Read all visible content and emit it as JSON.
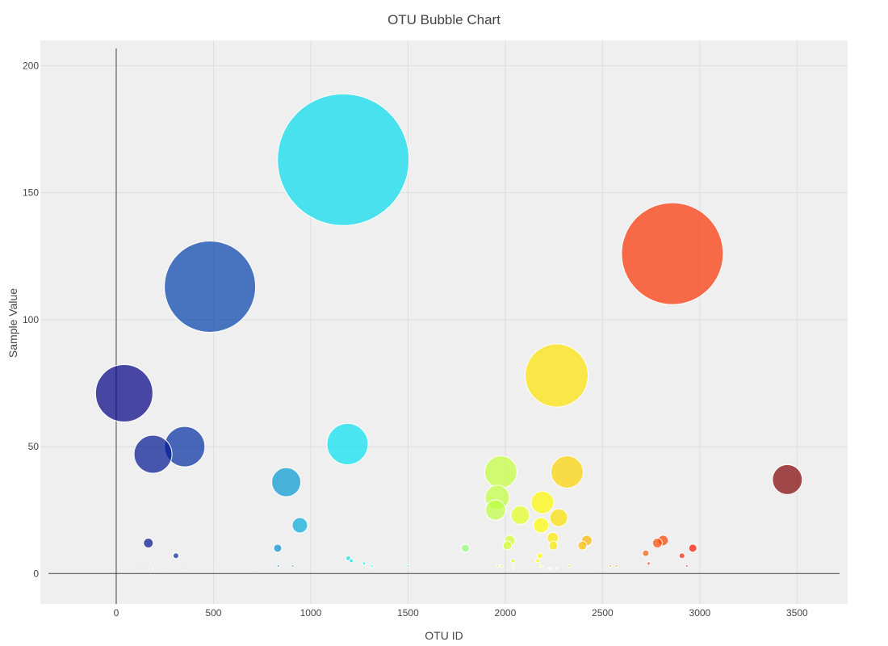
{
  "chart_data": {
    "type": "scatter",
    "subtype": "bubble",
    "title": "OTU Bubble Chart",
    "xlabel": "OTU ID",
    "ylabel": "Sample Value",
    "xlim": [
      -390,
      3760
    ],
    "ylim": [
      -12,
      210
    ],
    "xticks": [
      0,
      500,
      1000,
      1500,
      2000,
      2500,
      3000,
      3500
    ],
    "yticks": [
      0,
      50,
      100,
      150,
      200
    ],
    "grid": true,
    "legend": "none",
    "plot_background": "#efefef",
    "colorscale": "Jet",
    "color_by": "x",
    "size_by": "y",
    "points": [
      {
        "x": 1167,
        "y": 163
      },
      {
        "x": 2859,
        "y": 126
      },
      {
        "x": 482,
        "y": 113
      },
      {
        "x": 2264,
        "y": 78
      },
      {
        "x": 41,
        "y": 71
      },
      {
        "x": 1189,
        "y": 51
      },
      {
        "x": 352,
        "y": 50
      },
      {
        "x": 189,
        "y": 47
      },
      {
        "x": 2318,
        "y": 40
      },
      {
        "x": 1977,
        "y": 40
      },
      {
        "x": 3450,
        "y": 37
      },
      {
        "x": 874,
        "y": 36
      },
      {
        "x": 1959,
        "y": 30
      },
      {
        "x": 2191,
        "y": 28
      },
      {
        "x": 1950,
        "y": 25
      },
      {
        "x": 2077,
        "y": 23
      },
      {
        "x": 2275,
        "y": 22
      },
      {
        "x": 944,
        "y": 19
      },
      {
        "x": 2184,
        "y": 19
      },
      {
        "x": 2244,
        "y": 14
      },
      {
        "x": 2024,
        "y": 13
      },
      {
        "x": 2419,
        "y": 13
      },
      {
        "x": 2811,
        "y": 13
      },
      {
        "x": 165,
        "y": 12
      },
      {
        "x": 2782,
        "y": 12
      },
      {
        "x": 2247,
        "y": 11
      },
      {
        "x": 2011,
        "y": 11
      },
      {
        "x": 2396,
        "y": 11
      },
      {
        "x": 830,
        "y": 10
      },
      {
        "x": 2964,
        "y": 10
      },
      {
        "x": 1795,
        "y": 10
      },
      {
        "x": 2722,
        "y": 8
      },
      {
        "x": 2178,
        "y": 7
      },
      {
        "x": 2908,
        "y": 7
      },
      {
        "x": 307,
        "y": 7
      },
      {
        "x": 1193,
        "y": 6
      },
      {
        "x": 2167,
        "y": 5
      },
      {
        "x": 1208,
        "y": 5
      },
      {
        "x": 2039,
        "y": 5
      },
      {
        "x": 1274,
        "y": 4
      },
      {
        "x": 2737,
        "y": 4
      },
      {
        "x": 2571,
        "y": 3
      },
      {
        "x": 1314,
        "y": 3
      },
      {
        "x": 2933,
        "y": 3
      },
      {
        "x": 907,
        "y": 3
      },
      {
        "x": 833,
        "y": 3
      },
      {
        "x": 2329,
        "y": 3
      },
      {
        "x": 1962,
        "y": 3
      },
      {
        "x": 2186,
        "y": 3
      },
      {
        "x": 2539,
        "y": 3
      },
      {
        "x": 1977,
        "y": 3
      },
      {
        "x": 2182,
        "y": 3
      },
      {
        "x": 2042,
        "y": 3
      },
      {
        "x": 1500,
        "y": 3
      },
      {
        "x": 1980,
        "y": 3
      },
      {
        "x": 2188,
        "y": 3
      },
      {
        "x": 2481,
        "y": 2
      },
      {
        "x": 2264,
        "y": 2
      },
      {
        "x": 2225,
        "y": 2
      },
      {
        "x": 2234,
        "y": 2
      },
      {
        "x": 2038,
        "y": 2
      },
      {
        "x": 1319,
        "y": 2
      },
      {
        "x": 352,
        "y": 2
      },
      {
        "x": 342,
        "y": 2
      },
      {
        "x": 165,
        "y": 2
      },
      {
        "x": 180,
        "y": 2
      },
      {
        "x": 125,
        "y": 2
      },
      {
        "x": 177,
        "y": 2
      },
      {
        "x": 259,
        "y": 2
      },
      {
        "x": 410,
        "y": 2
      },
      {
        "x": 513,
        "y": 2
      },
      {
        "x": 722,
        "y": 2
      }
    ]
  }
}
